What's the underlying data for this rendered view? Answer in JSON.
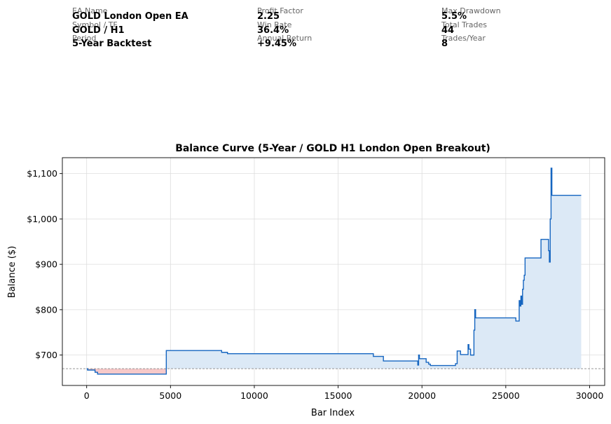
{
  "stats": [
    {
      "label": "EA Name",
      "value": "GOLD London Open EA"
    },
    {
      "label": "Symbol / TF",
      "value": "GOLD / H1"
    },
    {
      "label": "Period",
      "value": "5-Year Backtest"
    },
    {
      "label": "Profit Factor",
      "value": "2.25"
    },
    {
      "label": "Win Rate",
      "value": "36.4%"
    },
    {
      "label": "Annual Return",
      "value": "+9.45%"
    },
    {
      "label": "Max Drawdown",
      "value": "5.5%"
    },
    {
      "label": "Total Trades",
      "value": "44"
    },
    {
      "label": "Trades/Year",
      "value": "8"
    }
  ],
  "chart_data": {
    "type": "area",
    "title": "Balance Curve (5-Year / GOLD H1 London Open Breakout)",
    "xlabel": "Bar Index",
    "ylabel": "Balance ($)",
    "xlim": [
      -1450,
      30900
    ],
    "ylim": [
      633,
      1135
    ],
    "x_ticks": [
      0,
      5000,
      10000,
      15000,
      20000,
      25000,
      30000
    ],
    "x_tick_labels": [
      "0",
      "5000",
      "10000",
      "15000",
      "20000",
      "25000",
      "30000"
    ],
    "y_ticks": [
      700,
      800,
      900,
      1000,
      1100
    ],
    "y_tick_labels": [
      "$700",
      "$800",
      "$900",
      "$1,000",
      "$1,100"
    ],
    "grid": true,
    "baseline": 670,
    "colors": {
      "line": "#1565c0",
      "fill_above": "#dce9f6",
      "fill_below": "#f7c9c9",
      "baseline": "#888888",
      "grid": "#dddddd"
    },
    "series": [
      {
        "x": [
          0,
          50,
          50,
          500,
          500,
          650,
          650,
          4750,
          4750,
          8050,
          8050,
          8400,
          8400,
          17100,
          17100,
          17700,
          17700,
          19750,
          19750,
          19800,
          19800,
          19850,
          19850,
          20250,
          20250,
          20400,
          20400,
          20500,
          20500,
          22000,
          22000,
          22100,
          22100,
          22300,
          22300,
          22750,
          22750,
          22800,
          22800,
          22900,
          22900,
          23100,
          23100,
          23150,
          23150,
          23200,
          23200,
          25600,
          25600,
          25800,
          25800,
          25850,
          25850,
          25900,
          25900,
          25950,
          25950,
          26000,
          26000,
          26050,
          26050,
          26100,
          26100,
          26150,
          26150,
          27100,
          27100,
          27550,
          27550,
          27600,
          27600,
          27650,
          27650,
          27700,
          27700,
          27750,
          27750,
          27780,
          27780,
          29500
        ],
        "y": [
          670,
          670,
          667,
          667,
          662,
          662,
          658,
          658,
          710,
          710,
          706,
          706,
          703,
          703,
          697,
          697,
          687,
          687,
          678,
          678,
          700,
          700,
          692,
          692,
          684,
          684,
          680,
          680,
          677,
          677,
          681,
          681,
          709,
          709,
          701,
          701,
          723,
          723,
          713,
          713,
          700,
          700,
          755,
          755,
          800,
          800,
          782,
          782,
          775,
          775,
          820,
          820,
          808,
          808,
          830,
          830,
          812,
          812,
          845,
          845,
          865,
          865,
          876,
          876,
          914,
          914,
          955,
          955,
          930,
          930,
          905,
          905,
          1000,
          1000,
          1112,
          1112,
          1052,
          1052,
          1052,
          1052
        ]
      }
    ]
  }
}
